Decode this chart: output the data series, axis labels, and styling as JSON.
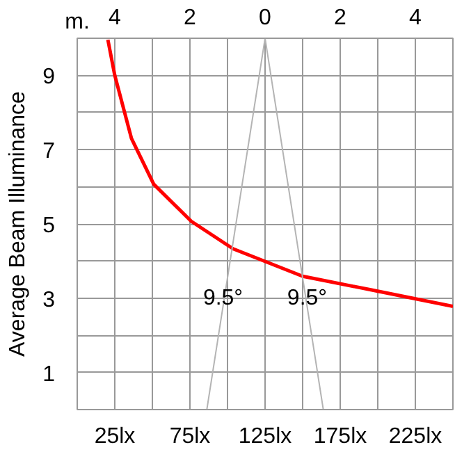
{
  "chart_data": {
    "type": "line",
    "ylabel": "Average Beam Illuminance",
    "x2label": "m.",
    "xlim": [
      0,
      250
    ],
    "xticks": [
      {
        "value": 0,
        "label": null
      },
      {
        "value": 25,
        "label": "25lx"
      },
      {
        "value": 50,
        "label": null
      },
      {
        "value": 75,
        "label": "75lx"
      },
      {
        "value": 100,
        "label": null
      },
      {
        "value": 125,
        "label": "125lx"
      },
      {
        "value": 150,
        "label": null
      },
      {
        "value": 175,
        "label": "175lx"
      },
      {
        "value": 200,
        "label": null
      },
      {
        "value": 225,
        "label": "225lx"
      },
      {
        "value": 250,
        "label": null
      }
    ],
    "x2lim": [
      -5,
      5
    ],
    "x2ticks": [
      {
        "value": -4,
        "label": "4"
      },
      {
        "value": -2,
        "label": "2"
      },
      0,
      2,
      4
    ],
    "ylim": [
      0,
      10
    ],
    "yticks": [
      {
        "value": 0,
        "label": null
      },
      1,
      {
        "value": 2,
        "label": null
      },
      3,
      {
        "value": 4,
        "label": null
      },
      5,
      {
        "value": 6,
        "label": null
      },
      7,
      {
        "value": 8,
        "label": null
      },
      9,
      {
        "value": 10,
        "label": null
      }
    ],
    "grid": true,
    "line_style": "solid",
    "marker": "none",
    "series": [
      {
        "color": "#ff0000",
        "x": [
          20.4,
          25,
          36.1,
          50.9,
          75.9,
          103.7,
          150,
          196,
          250
        ],
        "values": [
          9.96,
          9.0,
          7.3,
          6.07,
          5.07,
          4.33,
          3.59,
          3.22,
          2.78
        ]
      },
      {
        "color": "#b4b4b4",
        "axis": "x2",
        "x": [
          -1.55,
          0,
          1.55
        ],
        "values": [
          0,
          10,
          0
        ]
      }
    ],
    "annotations": [
      {
        "text": "9.5°",
        "x": 97,
        "y": 3
      },
      {
        "text": "9.5°",
        "x": 153,
        "y": 3
      }
    ]
  }
}
